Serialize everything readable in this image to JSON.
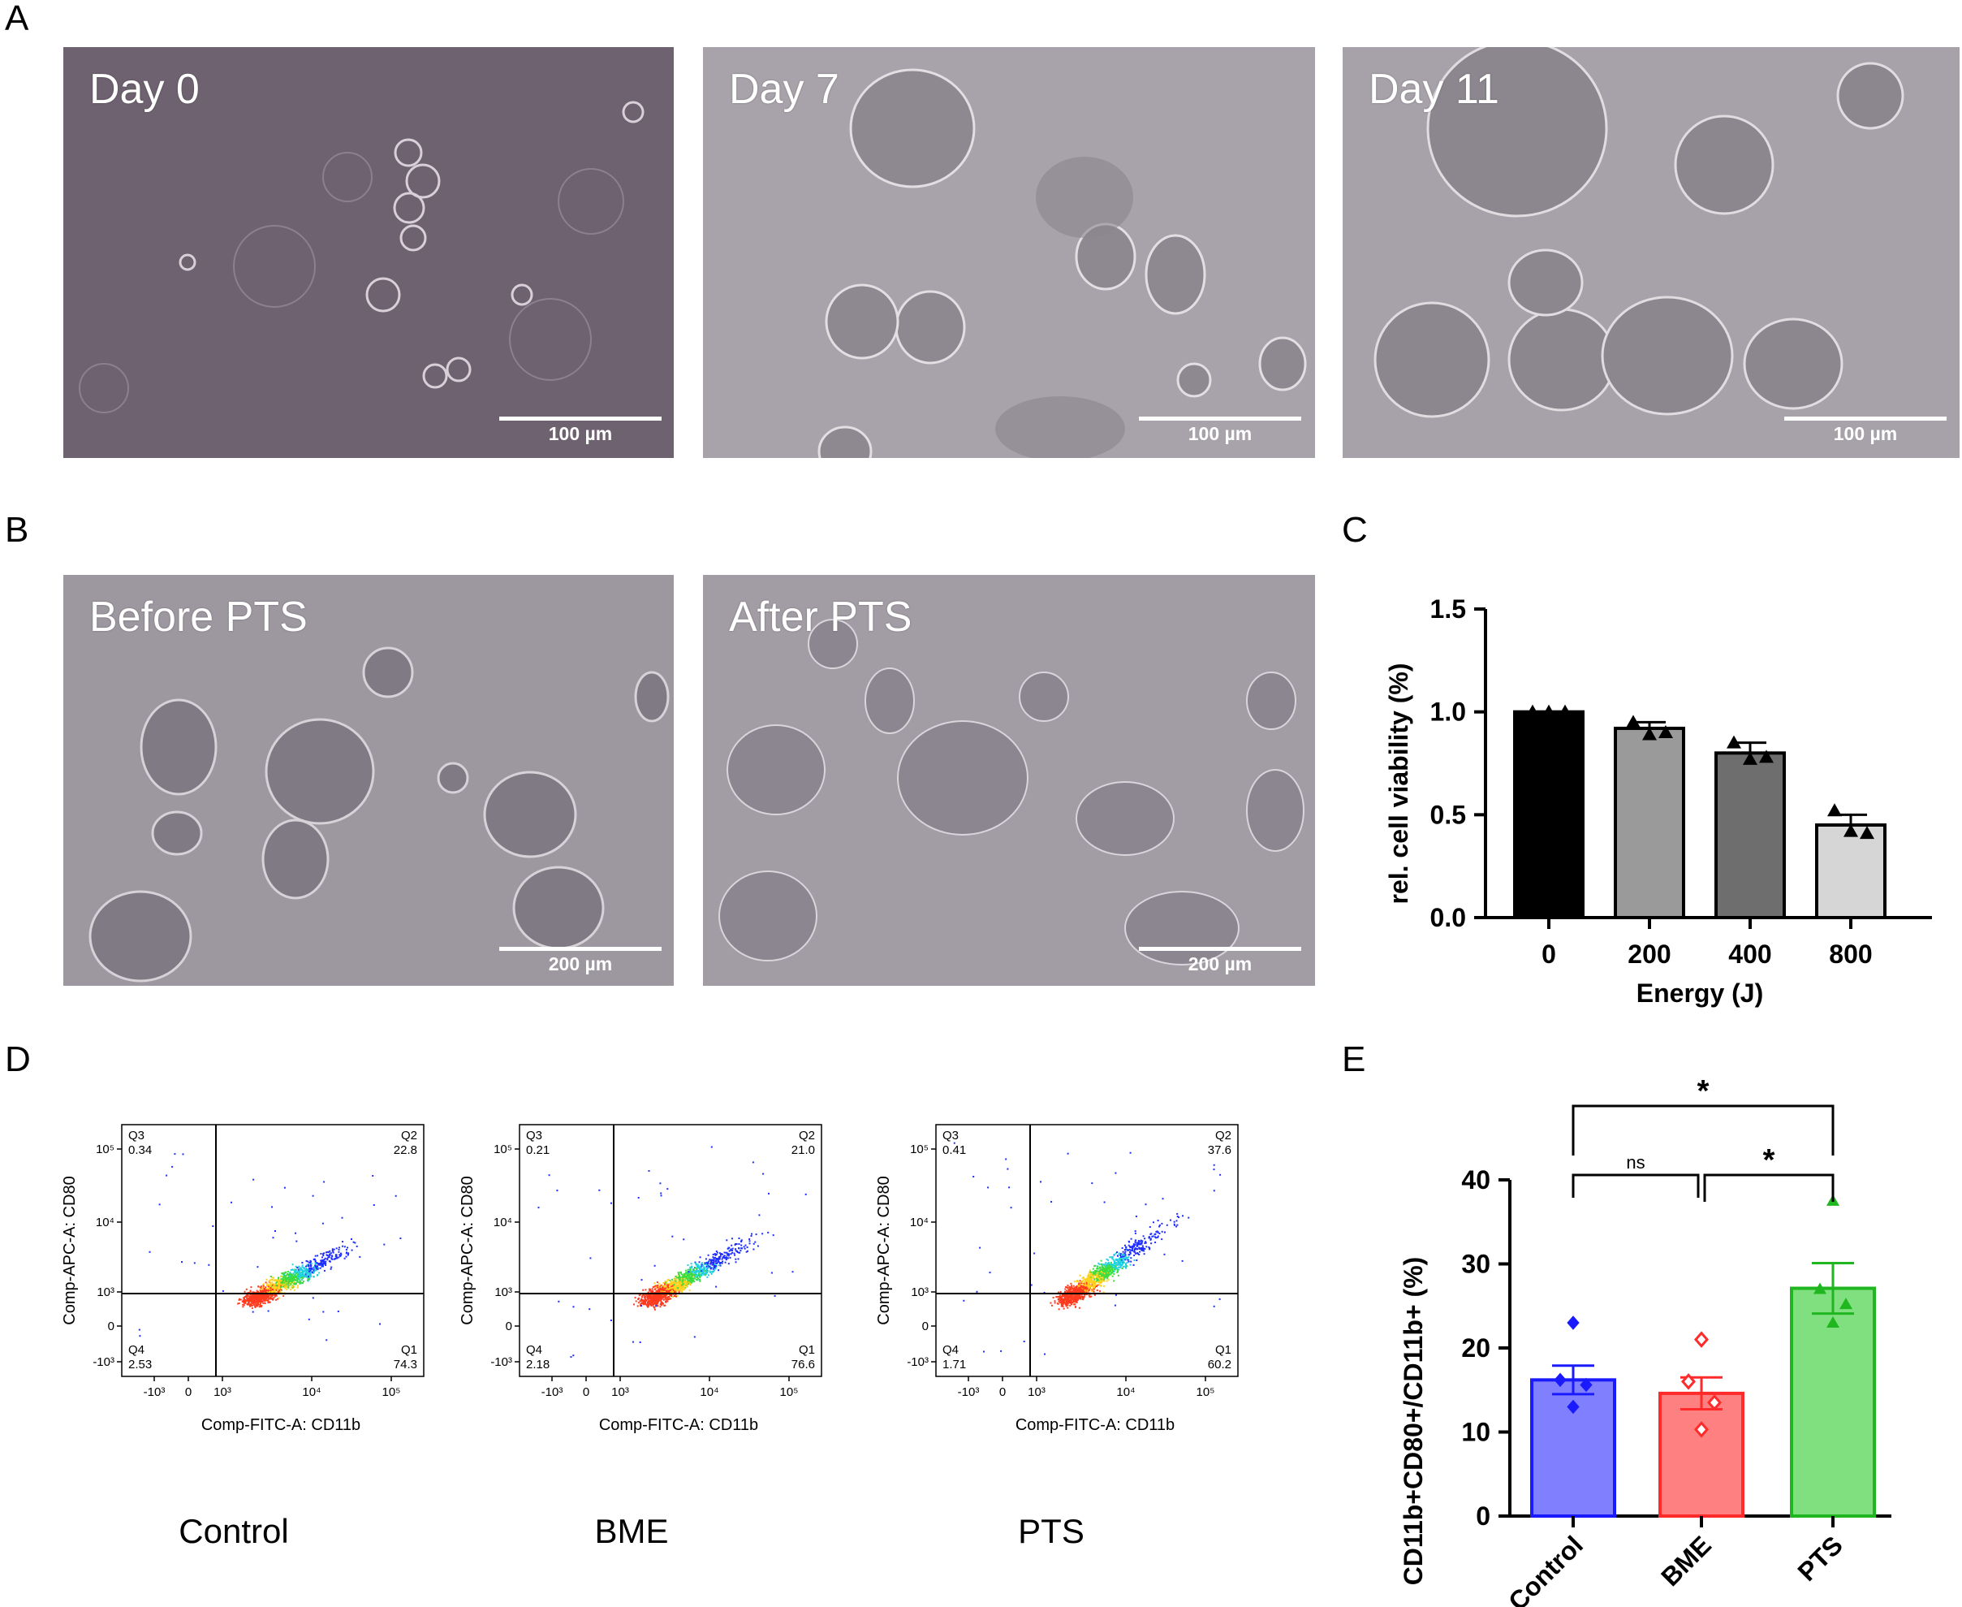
{
  "panel_labels": {
    "a": "A",
    "b": "B",
    "c": "C",
    "d": "D",
    "e": "E"
  },
  "panel_a": {
    "images": [
      {
        "label": "Day 0",
        "scale": "100 µm"
      },
      {
        "label": "Day 7",
        "scale": "100 µm"
      },
      {
        "label": "Day 11",
        "scale": "100 µm"
      }
    ]
  },
  "panel_b": {
    "images": [
      {
        "label": "Before PTS",
        "scale": "200 µm"
      },
      {
        "label": "After PTS",
        "scale": "200 µm"
      }
    ]
  },
  "panel_d": {
    "x_label": "Comp-FITC-A: CD11b",
    "y_label": "Comp-APC-A: CD80",
    "x_ticks": [
      "-10³",
      "0",
      "10³",
      "10⁴",
      "10⁵"
    ],
    "y_ticks": [
      "10⁵",
      "10⁴",
      "10³",
      "0",
      "-10³"
    ],
    "plots": [
      {
        "caption": "Control",
        "q1": "74.3",
        "q2": "22.8",
        "q3": "0.34",
        "q4": "2.53"
      },
      {
        "caption": "BME",
        "q1": "76.6",
        "q2": "21.0",
        "q3": "0.21",
        "q4": "2.18"
      },
      {
        "caption": "PTS",
        "q1": "60.2",
        "q2": "37.6",
        "q3": "0.41",
        "q4": "1.71"
      }
    ],
    "quad_names": {
      "q1": "Q1",
      "q2": "Q2",
      "q3": "Q3",
      "q4": "Q4"
    }
  },
  "chart_data": [
    {
      "type": "bar",
      "xlabel": "Energy (J)",
      "ylabel": "rel. cell viability (%)",
      "categories": [
        "0",
        "200",
        "400",
        "800"
      ],
      "values": [
        1.0,
        0.92,
        0.8,
        0.45
      ],
      "errors": [
        0.0,
        0.03,
        0.05,
        0.05
      ],
      "points": [
        [
          1.0,
          1.0,
          1.0
        ],
        [
          0.95,
          0.89,
          0.9
        ],
        [
          0.85,
          0.77,
          0.78
        ],
        [
          0.52,
          0.42,
          0.41
        ]
      ],
      "ylim": [
        0.0,
        1.5
      ],
      "yticks": [
        "0.0",
        "0.5",
        "1.0",
        "1.5"
      ],
      "colors": [
        "#000000",
        "#9a9a9a",
        "#6e6e6e",
        "#d6d6d6"
      ]
    },
    {
      "type": "bar",
      "xlabel": "",
      "ylabel": "CD11b+CD80+/CD11b+ (%)",
      "categories": [
        "Control",
        "BME",
        "PTS"
      ],
      "values": [
        16.2,
        14.6,
        27.1
      ],
      "errors": [
        1.7,
        1.9,
        3.0
      ],
      "points": [
        [
          23.0,
          16.2,
          15.6,
          13.0
        ],
        [
          21.0,
          16.0,
          13.5,
          10.3
        ],
        [
          37.5,
          27.0,
          25.2,
          23.0
        ]
      ],
      "ylim": [
        0,
        40
      ],
      "yticks": [
        "0",
        "10",
        "20",
        "30",
        "40"
      ],
      "fill_colors": [
        "#8080ff",
        "#ff8080",
        "#80e080"
      ],
      "edge_colors": [
        "#1a1aff",
        "#ff2a2a",
        "#1fb61f"
      ],
      "annotations": [
        {
          "from": "Control",
          "to": "PTS",
          "label": "*"
        },
        {
          "from": "Control",
          "to": "BME",
          "label": "ns"
        },
        {
          "from": "BME",
          "to": "PTS",
          "label": "*"
        }
      ]
    }
  ]
}
